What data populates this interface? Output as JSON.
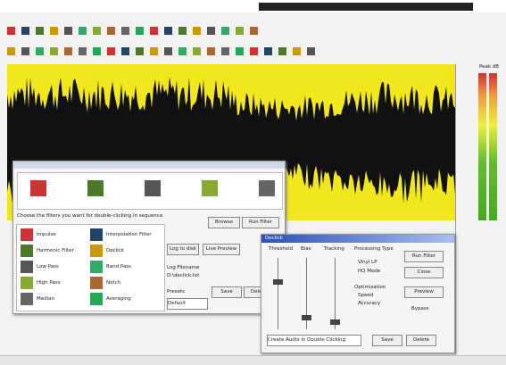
{
  "app": {
    "filter_chooser": {
      "instruction": "Choose the filters you want for double-clicking in sequence",
      "browse": "Browse",
      "run": "Run Filter",
      "filters": [
        "Impulse",
        "Interpolation Filter",
        "Harmonic Filter",
        "Declick",
        "Low Pass",
        "Band Pass",
        "High Pass",
        "Notch",
        "Median",
        "Averaging"
      ],
      "log_to_disk": "Log to disk",
      "live_preview": "Live Preview",
      "filename_label": "Log Filename",
      "filename": "D:\\declick.txt",
      "presets": "Presets",
      "save": "Save",
      "delete": "Delete",
      "preset": "Default"
    },
    "declick": {
      "title": "Declick",
      "threshold": "Threshold",
      "bias": "Bias",
      "tracking": "Tracking",
      "processing_type": "Processing Type",
      "vinyl": "Vinyl LP",
      "hq": "HQ Mode",
      "optimization": "Optimization",
      "speed": "Speed",
      "accuracy": "Accuracy",
      "run": "Run Filter",
      "close": "Close",
      "preview": "Preview",
      "bypass": "Bypass",
      "preset_field": "Create Audio in Double Clicking",
      "save": "Save",
      "delete": "Delete"
    },
    "meter_label": "Peak dB"
  }
}
